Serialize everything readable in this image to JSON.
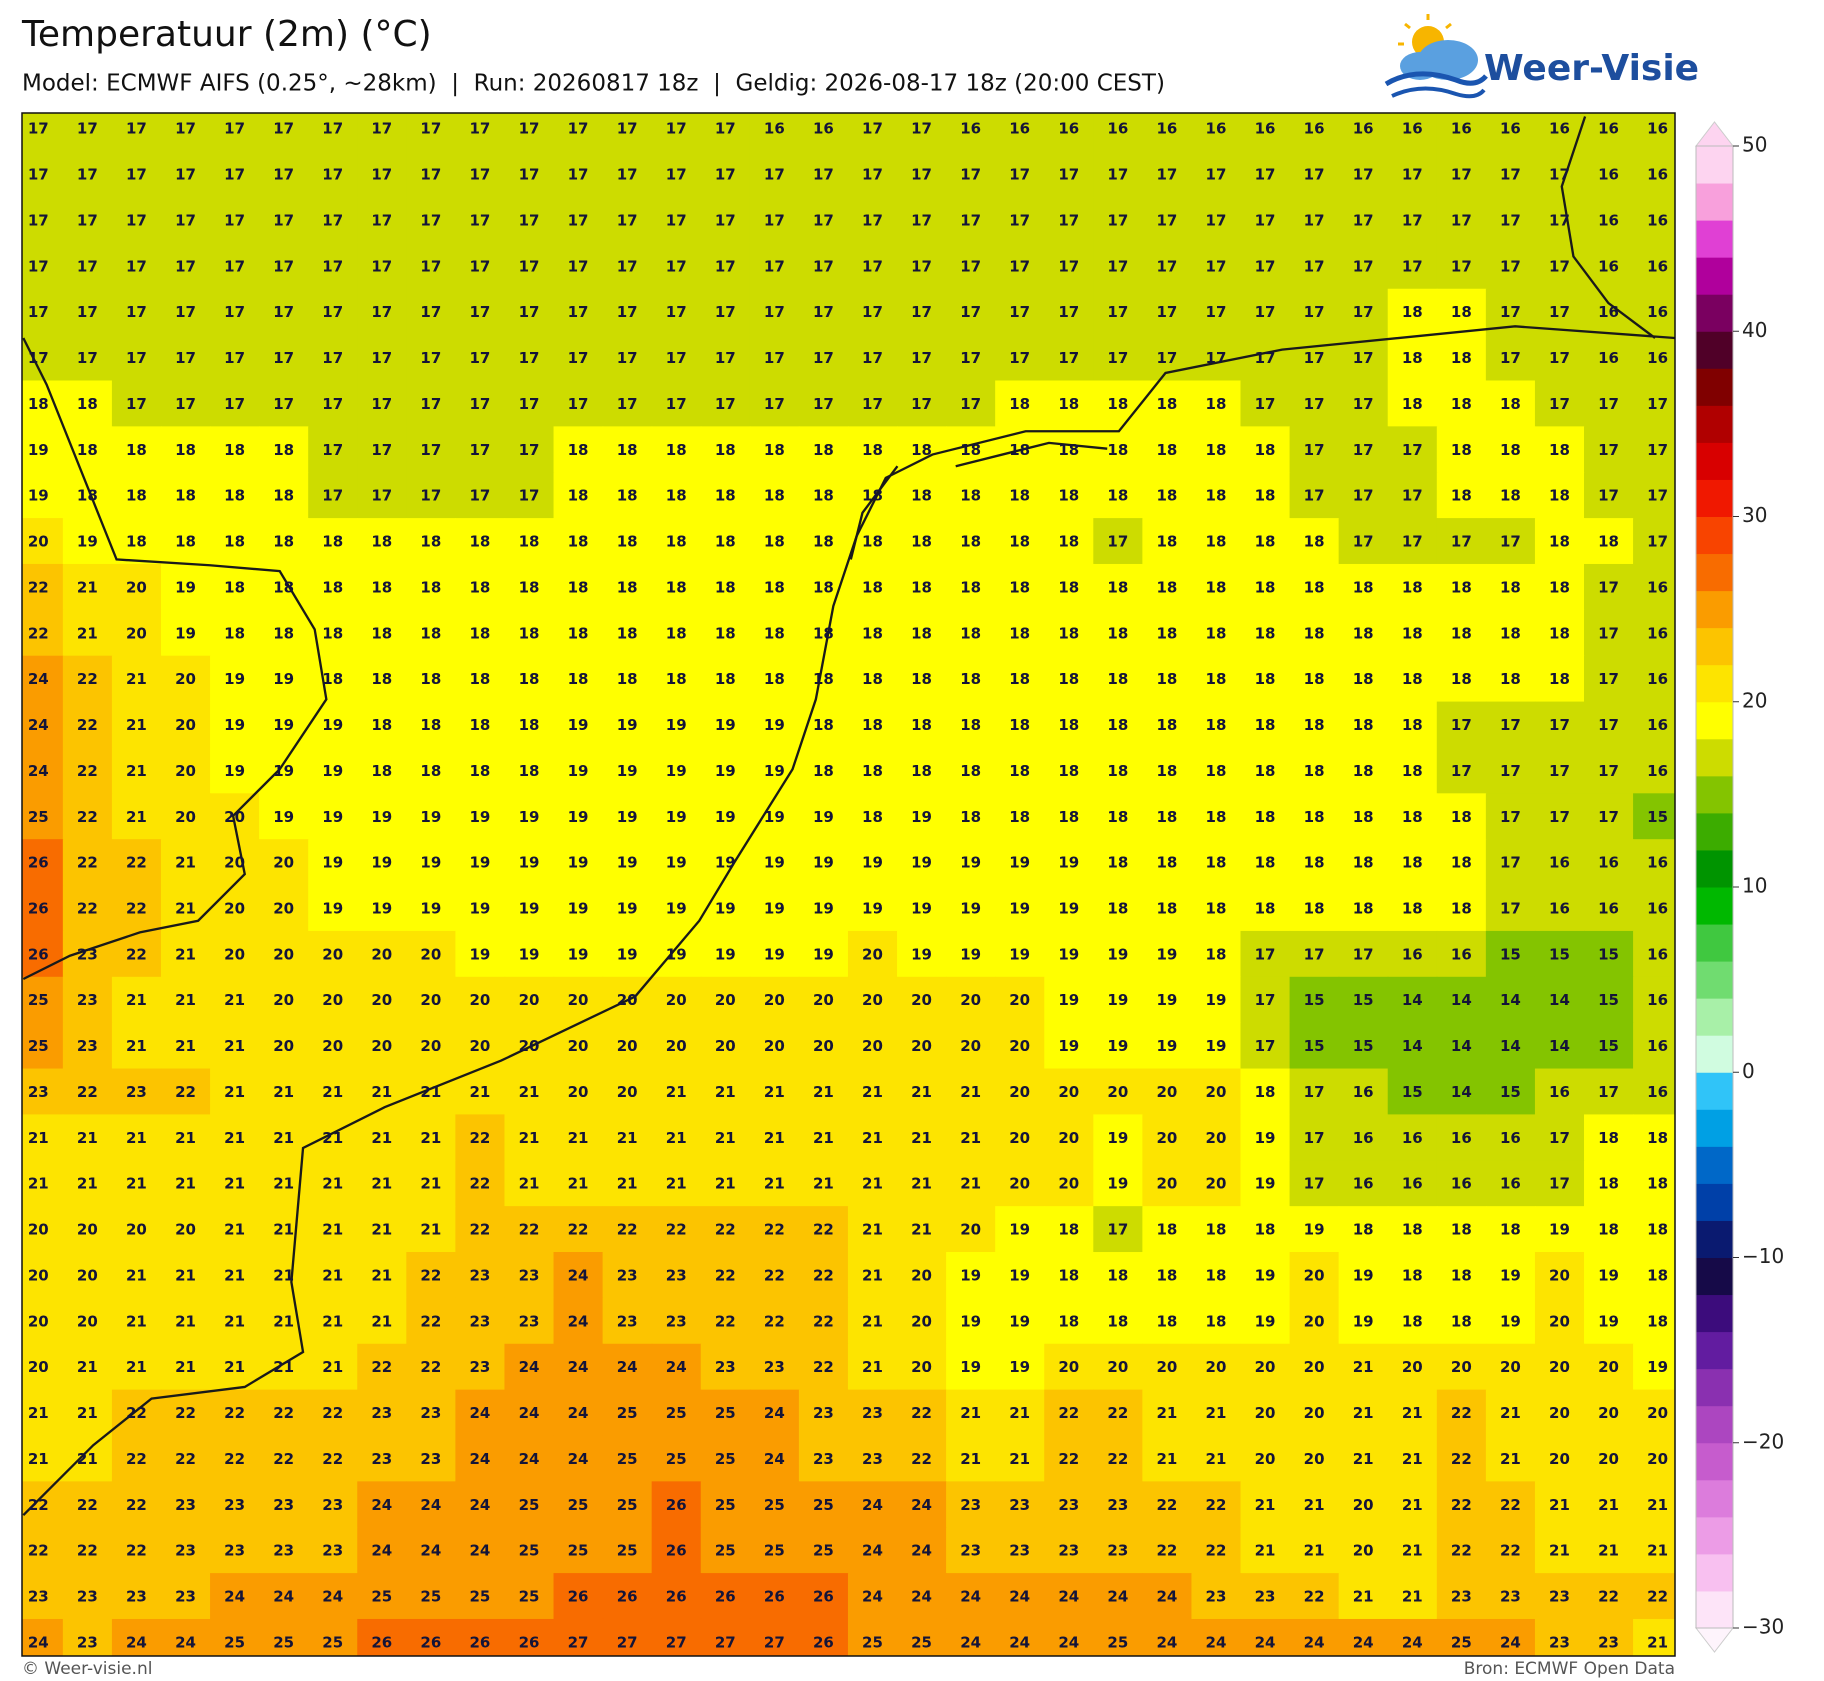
{
  "header": {
    "title": "Temperatuur (2m) (°C)",
    "subtitle": "Model: ECMWF AIFS (0.25°, ~28km)  |  Run: 20260817 18z  |  Geldig: 2026-08-17 18z (20:00 CEST)",
    "logo": "Weer-Visie"
  },
  "chart_data": {
    "type": "heatmap",
    "values": [
      [
        17,
        17,
        17,
        17,
        17,
        17,
        17,
        17,
        17,
        17,
        17,
        17,
        17,
        17,
        17,
        16,
        16,
        17,
        17,
        16,
        16,
        16,
        16,
        16,
        16,
        16,
        16,
        16,
        16,
        16,
        16,
        16,
        16,
        16
      ],
      [
        17,
        17,
        17,
        17,
        17,
        17,
        17,
        17,
        17,
        17,
        17,
        17,
        17,
        17,
        17,
        17,
        17,
        17,
        17,
        17,
        17,
        17,
        17,
        17,
        17,
        17,
        17,
        17,
        17,
        17,
        17,
        17,
        16,
        16
      ],
      [
        17,
        17,
        17,
        17,
        17,
        17,
        17,
        17,
        17,
        17,
        17,
        17,
        17,
        17,
        17,
        17,
        17,
        17,
        17,
        17,
        17,
        17,
        17,
        17,
        17,
        17,
        17,
        17,
        17,
        17,
        17,
        17,
        16,
        16
      ],
      [
        17,
        17,
        17,
        17,
        17,
        17,
        17,
        17,
        17,
        17,
        17,
        17,
        17,
        17,
        17,
        17,
        17,
        17,
        17,
        17,
        17,
        17,
        17,
        17,
        17,
        17,
        17,
        17,
        17,
        17,
        17,
        17,
        16,
        16
      ],
      [
        17,
        17,
        17,
        17,
        17,
        17,
        17,
        17,
        17,
        17,
        17,
        17,
        17,
        17,
        17,
        17,
        17,
        17,
        17,
        17,
        17,
        17,
        17,
        17,
        17,
        17,
        17,
        17,
        18,
        18,
        17,
        17,
        16,
        16
      ],
      [
        17,
        17,
        17,
        17,
        17,
        17,
        17,
        17,
        17,
        17,
        17,
        17,
        17,
        17,
        17,
        17,
        17,
        17,
        17,
        17,
        17,
        17,
        17,
        17,
        17,
        17,
        17,
        17,
        18,
        18,
        17,
        17,
        16,
        16
      ],
      [
        18,
        18,
        17,
        17,
        17,
        17,
        17,
        17,
        17,
        17,
        17,
        17,
        17,
        17,
        17,
        17,
        17,
        17,
        17,
        17,
        18,
        18,
        18,
        18,
        18,
        17,
        17,
        17,
        18,
        18,
        18,
        17,
        17,
        17
      ],
      [
        19,
        18,
        18,
        18,
        18,
        18,
        17,
        17,
        17,
        17,
        17,
        18,
        18,
        18,
        18,
        18,
        18,
        18,
        18,
        18,
        18,
        18,
        18,
        18,
        18,
        18,
        17,
        17,
        17,
        18,
        18,
        18,
        17,
        17
      ],
      [
        19,
        18,
        18,
        18,
        18,
        18,
        17,
        17,
        17,
        17,
        17,
        18,
        18,
        18,
        18,
        18,
        18,
        18,
        18,
        18,
        18,
        18,
        18,
        18,
        18,
        18,
        17,
        17,
        17,
        18,
        18,
        18,
        17,
        17
      ],
      [
        20,
        19,
        18,
        18,
        18,
        18,
        18,
        18,
        18,
        18,
        18,
        18,
        18,
        18,
        18,
        18,
        18,
        18,
        18,
        18,
        18,
        18,
        17,
        18,
        18,
        18,
        18,
        17,
        17,
        17,
        17,
        18,
        18,
        17
      ],
      [
        22,
        21,
        20,
        19,
        18,
        18,
        18,
        18,
        18,
        18,
        18,
        18,
        18,
        18,
        18,
        18,
        18,
        18,
        18,
        18,
        18,
        18,
        18,
        18,
        18,
        18,
        18,
        18,
        18,
        18,
        18,
        18,
        17,
        16
      ],
      [
        22,
        21,
        20,
        19,
        18,
        18,
        18,
        18,
        18,
        18,
        18,
        18,
        18,
        18,
        18,
        18,
        18,
        18,
        18,
        18,
        18,
        18,
        18,
        18,
        18,
        18,
        18,
        18,
        18,
        18,
        18,
        18,
        17,
        16
      ],
      [
        24,
        22,
        21,
        20,
        19,
        19,
        18,
        18,
        18,
        18,
        18,
        18,
        18,
        18,
        18,
        18,
        18,
        18,
        18,
        18,
        18,
        18,
        18,
        18,
        18,
        18,
        18,
        18,
        18,
        18,
        18,
        18,
        17,
        16
      ],
      [
        24,
        22,
        21,
        20,
        19,
        19,
        19,
        18,
        18,
        18,
        18,
        19,
        19,
        19,
        19,
        19,
        18,
        18,
        18,
        18,
        18,
        18,
        18,
        18,
        18,
        18,
        18,
        18,
        18,
        17,
        17,
        17,
        17,
        16
      ],
      [
        24,
        22,
        21,
        20,
        19,
        19,
        19,
        18,
        18,
        18,
        18,
        19,
        19,
        19,
        19,
        19,
        18,
        18,
        18,
        18,
        18,
        18,
        18,
        18,
        18,
        18,
        18,
        18,
        18,
        17,
        17,
        17,
        17,
        16
      ],
      [
        25,
        22,
        21,
        20,
        20,
        19,
        19,
        19,
        19,
        19,
        19,
        19,
        19,
        19,
        19,
        19,
        19,
        18,
        19,
        18,
        18,
        18,
        18,
        18,
        18,
        18,
        18,
        18,
        18,
        18,
        17,
        17,
        17,
        15
      ],
      [
        26,
        22,
        22,
        21,
        20,
        20,
        19,
        19,
        19,
        19,
        19,
        19,
        19,
        19,
        19,
        19,
        19,
        19,
        19,
        19,
        19,
        19,
        18,
        18,
        18,
        18,
        18,
        18,
        18,
        18,
        17,
        16,
        16,
        16
      ],
      [
        26,
        22,
        22,
        21,
        20,
        20,
        19,
        19,
        19,
        19,
        19,
        19,
        19,
        19,
        19,
        19,
        19,
        19,
        19,
        19,
        19,
        19,
        18,
        18,
        18,
        18,
        18,
        18,
        18,
        18,
        17,
        16,
        16,
        16
      ],
      [
        26,
        23,
        22,
        21,
        20,
        20,
        20,
        20,
        20,
        19,
        19,
        19,
        19,
        19,
        19,
        19,
        19,
        20,
        19,
        19,
        19,
        19,
        19,
        19,
        18,
        17,
        17,
        17,
        16,
        16,
        15,
        15,
        15,
        16
      ],
      [
        25,
        23,
        21,
        21,
        21,
        20,
        20,
        20,
        20,
        20,
        20,
        20,
        20,
        20,
        20,
        20,
        20,
        20,
        20,
        20,
        20,
        19,
        19,
        19,
        19,
        17,
        15,
        15,
        14,
        14,
        14,
        14,
        15,
        16
      ],
      [
        25,
        23,
        21,
        21,
        21,
        20,
        20,
        20,
        20,
        20,
        20,
        20,
        20,
        20,
        20,
        20,
        20,
        20,
        20,
        20,
        20,
        19,
        19,
        19,
        19,
        17,
        15,
        15,
        14,
        14,
        14,
        14,
        15,
        16
      ],
      [
        23,
        22,
        23,
        22,
        21,
        21,
        21,
        21,
        21,
        21,
        21,
        20,
        20,
        21,
        21,
        21,
        21,
        21,
        21,
        21,
        20,
        20,
        20,
        20,
        20,
        18,
        17,
        16,
        15,
        14,
        15,
        16,
        17,
        16
      ],
      [
        21,
        21,
        21,
        21,
        21,
        21,
        21,
        21,
        21,
        22,
        21,
        21,
        21,
        21,
        21,
        21,
        21,
        21,
        21,
        21,
        20,
        20,
        19,
        20,
        20,
        19,
        17,
        16,
        16,
        16,
        16,
        17,
        18,
        18
      ],
      [
        21,
        21,
        21,
        21,
        21,
        21,
        21,
        21,
        21,
        22,
        21,
        21,
        21,
        21,
        21,
        21,
        21,
        21,
        21,
        21,
        20,
        20,
        19,
        20,
        20,
        19,
        17,
        16,
        16,
        16,
        16,
        17,
        18,
        18
      ],
      [
        20,
        20,
        20,
        20,
        21,
        21,
        21,
        21,
        21,
        22,
        22,
        22,
        22,
        22,
        22,
        22,
        22,
        21,
        21,
        20,
        19,
        18,
        17,
        18,
        18,
        18,
        19,
        18,
        18,
        18,
        18,
        19,
        18,
        18
      ],
      [
        20,
        20,
        21,
        21,
        21,
        21,
        21,
        21,
        22,
        23,
        23,
        24,
        23,
        23,
        22,
        22,
        22,
        21,
        20,
        19,
        19,
        18,
        18,
        18,
        18,
        19,
        20,
        19,
        18,
        18,
        19,
        20,
        19,
        18
      ],
      [
        20,
        20,
        21,
        21,
        21,
        21,
        21,
        21,
        22,
        23,
        23,
        24,
        23,
        23,
        22,
        22,
        22,
        21,
        20,
        19,
        19,
        18,
        18,
        18,
        18,
        19,
        20,
        19,
        18,
        18,
        19,
        20,
        19,
        18
      ],
      [
        20,
        21,
        21,
        21,
        21,
        21,
        21,
        22,
        22,
        23,
        24,
        24,
        24,
        24,
        23,
        23,
        22,
        21,
        20,
        19,
        19,
        20,
        20,
        20,
        20,
        20,
        20,
        21,
        20,
        20,
        20,
        20,
        20,
        19
      ],
      [
        21,
        21,
        22,
        22,
        22,
        22,
        22,
        23,
        23,
        24,
        24,
        24,
        25,
        25,
        25,
        24,
        23,
        23,
        22,
        21,
        21,
        22,
        22,
        21,
        21,
        20,
        20,
        21,
        21,
        22,
        21,
        20,
        20,
        20
      ],
      [
        21,
        21,
        22,
        22,
        22,
        22,
        22,
        23,
        23,
        24,
        24,
        24,
        25,
        25,
        25,
        24,
        23,
        23,
        22,
        21,
        21,
        22,
        22,
        21,
        21,
        20,
        20,
        21,
        21,
        22,
        21,
        20,
        20,
        20
      ],
      [
        22,
        22,
        22,
        23,
        23,
        23,
        23,
        24,
        24,
        24,
        25,
        25,
        25,
        26,
        25,
        25,
        25,
        24,
        24,
        23,
        23,
        23,
        23,
        22,
        22,
        21,
        21,
        20,
        21,
        22,
        22,
        21,
        21,
        21
      ],
      [
        22,
        22,
        22,
        23,
        23,
        23,
        23,
        24,
        24,
        24,
        25,
        25,
        25,
        26,
        25,
        25,
        25,
        24,
        24,
        23,
        23,
        23,
        23,
        22,
        22,
        21,
        21,
        20,
        21,
        22,
        22,
        21,
        21,
        21
      ],
      [
        23,
        23,
        23,
        23,
        24,
        24,
        24,
        25,
        25,
        25,
        25,
        26,
        26,
        26,
        26,
        26,
        26,
        24,
        24,
        24,
        24,
        24,
        24,
        24,
        23,
        23,
        22,
        21,
        21,
        23,
        23,
        23,
        22,
        22
      ],
      [
        24,
        23,
        24,
        24,
        25,
        25,
        25,
        26,
        26,
        26,
        26,
        27,
        27,
        27,
        27,
        27,
        26,
        25,
        25,
        24,
        24,
        24,
        25,
        24,
        24,
        24,
        24,
        24,
        24,
        25,
        24,
        23,
        23,
        21
      ]
    ],
    "colorbar": {
      "lim": [
        -30,
        50
      ],
      "ticks": [
        50,
        40,
        30,
        20,
        10,
        0,
        {
          "value": -10,
          "label": "−10"
        },
        {
          "value": -20,
          "label": "−20"
        },
        {
          "value": -30,
          "label": "−30"
        }
      ],
      "colors": [
        "#fde4f8",
        "#f8c0f0",
        "#ec9ce6",
        "#dc7cdc",
        "#c65ccd",
        "#ac46c0",
        "#8a30b0",
        "#621ca0",
        "#3c0c7c",
        "#160a48",
        "#0a1a70",
        "#0040a8",
        "#0068c8",
        "#00a0e4",
        "#30c4f8",
        "#d0fce0",
        "#a8f0a8",
        "#70dc70",
        "#40c840",
        "#00b800",
        "#009400",
        "#3cac00",
        "#84c400",
        "#cddc00",
        "#ffff00",
        "#fde400",
        "#fcc400",
        "#fa9c00",
        "#f86c00",
        "#f84400",
        "#f01800",
        "#d80000",
        "#b00000",
        "#800000",
        "#500028",
        "#7a0060",
        "#b0009c",
        "#e040d4",
        "#f8a0dc",
        "#fdd4f0"
      ]
    }
  },
  "footer": {
    "left": "© Weer-visie.nl",
    "right": "Bron: ECMWF Open Data"
  }
}
